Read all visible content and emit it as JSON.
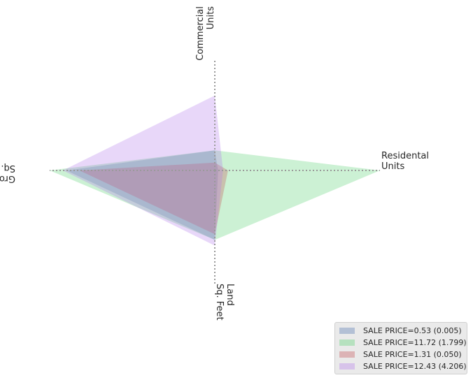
{
  "chart_data": {
    "type": "radar",
    "axes": [
      {
        "key": "residential",
        "label_lines": [
          "Residental",
          "Units"
        ]
      },
      {
        "key": "commercial",
        "label_lines": [
          "Commercial",
          "Units"
        ]
      },
      {
        "key": "gross",
        "label_lines": [
          "Gross",
          "Sq. Feet"
        ]
      },
      {
        "key": "land",
        "label_lines": [
          "Land",
          "Sq. Feet"
        ]
      }
    ],
    "rmax": 1.0,
    "grid": false,
    "series": [
      {
        "name": "SALE PRICE=0.53 (0.005)",
        "color": "#4c72b0",
        "values": {
          "residential": 0.02,
          "commercial": 0.18,
          "gross": 0.9,
          "land": 0.61
        }
      },
      {
        "name": "SALE PRICE=11.72 (1.799)",
        "color": "#55d170",
        "values": {
          "residential": 1.0,
          "commercial": 0.18,
          "gross": 1.0,
          "land": 0.61
        }
      },
      {
        "name": "SALE PRICE=1.31 (0.050)",
        "color": "#c44e52",
        "values": {
          "residential": 0.08,
          "commercial": 0.07,
          "gross": 0.82,
          "land": 0.56
        }
      },
      {
        "name": "SALE PRICE=12.43 (4.206)",
        "color": "#b47cec",
        "values": {
          "residential": 0.05,
          "commercial": 0.67,
          "gross": 0.92,
          "land": 0.66
        }
      }
    ],
    "legend": "lower-right"
  }
}
